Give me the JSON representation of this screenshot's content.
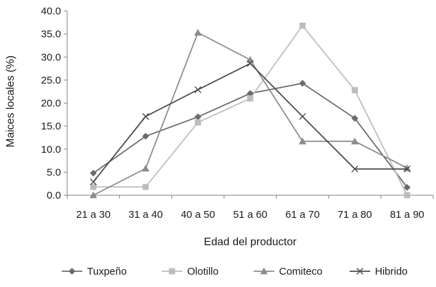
{
  "chart_data": {
    "type": "line",
    "title": "",
    "xlabel": "Edad del productor",
    "ylabel": "Maices locales (%)",
    "categories": [
      "21 a 30",
      "31 a 40",
      "40 a 50",
      "51 a 60",
      "61 a 70",
      "71 a 80",
      "81 a 90"
    ],
    "ylim": [
      0,
      40
    ],
    "yticks": [
      "0.0",
      "5.0",
      "10.0",
      "15.0",
      "20.0",
      "25.0",
      "30.0",
      "35.0",
      "40.0"
    ],
    "grid": false,
    "legend_position": "bottom",
    "series": [
      {
        "name": "Tuxpeño",
        "marker": "diamond",
        "color": "#6b6b6b",
        "values": [
          4.8,
          12.8,
          17.0,
          22.1,
          24.3,
          16.7,
          1.7
        ]
      },
      {
        "name": "Olotillo",
        "marker": "square",
        "color": "#bdbdbd",
        "values": [
          1.8,
          1.8,
          15.8,
          21.0,
          36.8,
          22.8,
          0.0
        ]
      },
      {
        "name": "Comiteco",
        "marker": "triangle",
        "color": "#8c8c8c",
        "values": [
          0.0,
          5.8,
          35.3,
          29.4,
          11.7,
          11.7,
          5.9
        ]
      },
      {
        "name": "Hibrido",
        "marker": "x",
        "color": "#4a4a4a",
        "values": [
          2.9,
          17.1,
          22.9,
          28.6,
          17.1,
          5.7,
          5.7
        ]
      }
    ]
  }
}
